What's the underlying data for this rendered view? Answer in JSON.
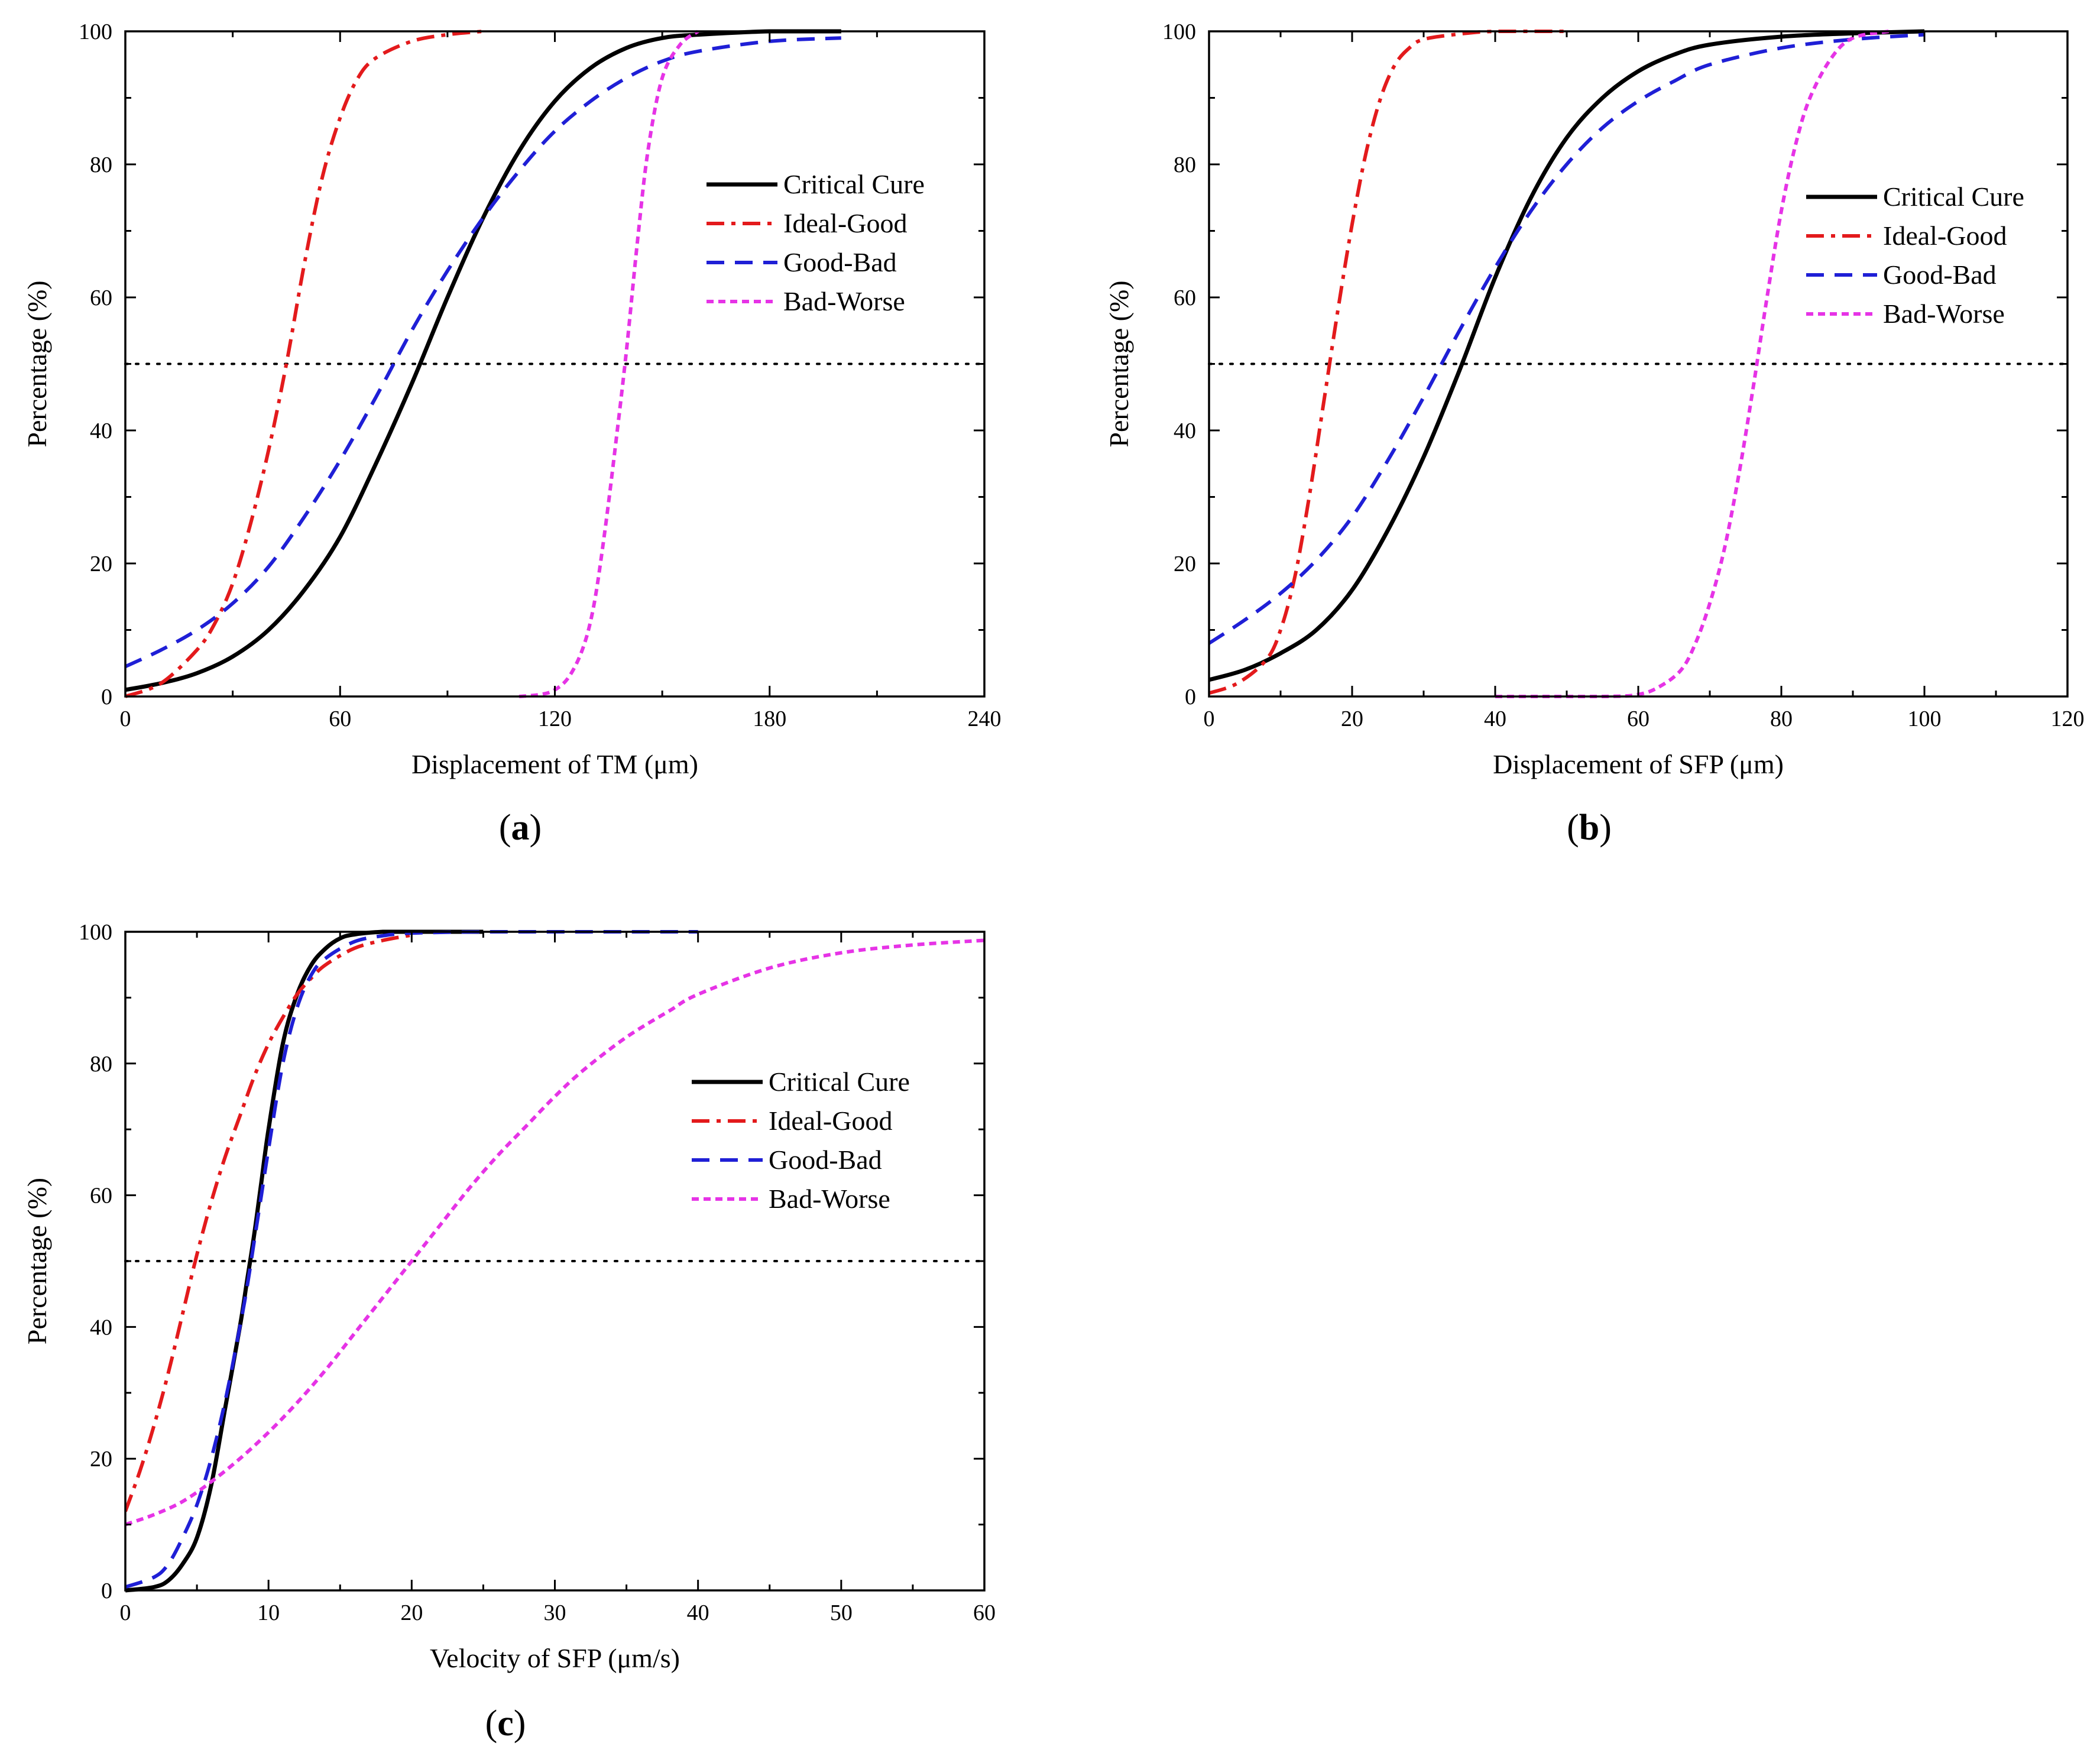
{
  "colors": {
    "critical": "#000000",
    "ideal_good": "#e31a1c",
    "good_bad": "#1f1fd6",
    "bad_worse": "#e633e6",
    "reference": "#000000"
  },
  "chart_data": [
    {
      "type": "line",
      "panel_label": "a",
      "xlabel": "Displacement of TM (μm)",
      "ylabel": "Percentage (%)",
      "xlim": [
        0,
        240
      ],
      "ylim": [
        0,
        100
      ],
      "xticks": [
        0,
        60,
        120,
        180,
        240
      ],
      "yticks": [
        0,
        20,
        40,
        60,
        80,
        100
      ],
      "reference_line": {
        "y": 50,
        "style": "dotted"
      },
      "legend_position": "center-right",
      "series": [
        {
          "name": "Critical Cure",
          "key": "critical",
          "style": "solid",
          "x": [
            0,
            10,
            20,
            30,
            40,
            50,
            60,
            70,
            80,
            90,
            100,
            110,
            120,
            130,
            140,
            150,
            160,
            180,
            200
          ],
          "y": [
            1,
            2,
            3.5,
            6,
            10,
            16,
            24,
            35,
            47,
            60,
            72,
            82,
            89.5,
            94.5,
            97.5,
            99,
            99.5,
            100,
            100
          ]
        },
        {
          "name": "Ideal-Good",
          "key": "ideal_good",
          "style": "dashdot",
          "x": [
            0,
            10,
            20,
            25,
            30,
            35,
            40,
            45,
            50,
            55,
            60,
            65,
            70,
            80,
            90,
            100
          ],
          "y": [
            0,
            2,
            7,
            11,
            17,
            26,
            37,
            50,
            65,
            78,
            87,
            93,
            96,
            98.5,
            99.5,
            100
          ]
        },
        {
          "name": "Good-Bad",
          "key": "good_bad",
          "style": "dashed",
          "x": [
            0,
            10,
            20,
            30,
            40,
            50,
            60,
            70,
            80,
            90,
            100,
            110,
            120,
            130,
            140,
            150,
            160,
            180,
            200
          ],
          "y": [
            4.5,
            7,
            10,
            14,
            19.5,
            27,
            35.5,
            45,
            55,
            64,
            72,
            79,
            85,
            89.5,
            93,
            95.5,
            97,
            98.5,
            99
          ]
        },
        {
          "name": "Bad-Worse",
          "key": "bad_worse",
          "style": "dotted",
          "x": [
            110,
            116,
            120,
            124,
            128,
            131,
            134,
            137,
            140,
            143,
            146,
            150,
            155,
            160
          ],
          "y": [
            0,
            0.3,
            1,
            3,
            7.5,
            14,
            25,
            38,
            52,
            68,
            82,
            93,
            98,
            100
          ]
        }
      ]
    },
    {
      "type": "line",
      "panel_label": "b",
      "xlabel": "Displacement of SFP (μm)",
      "ylabel": "Percentage (%)",
      "xlim": [
        0,
        120
      ],
      "ylim": [
        0,
        100
      ],
      "xticks": [
        0,
        20,
        40,
        60,
        80,
        100,
        120
      ],
      "yticks": [
        0,
        20,
        40,
        60,
        80,
        100
      ],
      "reference_line": {
        "y": 50,
        "style": "dotted"
      },
      "legend_position": "center-right",
      "series": [
        {
          "name": "Critical Cure",
          "key": "critical",
          "style": "solid",
          "x": [
            0,
            5,
            10,
            15,
            20,
            25,
            30,
            35,
            40,
            45,
            50,
            55,
            60,
            65,
            70,
            80,
            90,
            100
          ],
          "y": [
            2.5,
            4,
            6.5,
            10,
            16,
            25,
            36,
            49,
            63,
            75,
            84,
            90,
            94,
            96.5,
            98,
            99.2,
            99.7,
            100
          ]
        },
        {
          "name": "Ideal-Good",
          "key": "ideal_good",
          "style": "dashdot",
          "x": [
            0,
            4,
            8,
            10,
            12,
            14,
            16,
            18,
            20,
            22,
            24,
            26,
            28,
            30,
            35,
            40,
            50
          ],
          "y": [
            0.5,
            2,
            5.5,
            10,
            18,
            30,
            44,
            58,
            71,
            82,
            90,
            95,
            97.5,
            98.8,
            99.6,
            100,
            100
          ]
        },
        {
          "name": "Good-Bad",
          "key": "good_bad",
          "style": "dashed",
          "x": [
            0,
            5,
            10,
            15,
            20,
            25,
            30,
            35,
            40,
            45,
            50,
            55,
            60,
            65,
            70,
            80,
            90,
            100
          ],
          "y": [
            8,
            11.5,
            15.5,
            20.5,
            27,
            35.5,
            45,
            55,
            64.5,
            73,
            80,
            85.5,
            89.5,
            92.5,
            95,
            97.5,
            98.8,
            99.5
          ]
        },
        {
          "name": "Bad-Worse",
          "key": "bad_worse",
          "style": "dotted",
          "x": [
            40,
            55,
            60,
            63,
            66,
            68,
            70,
            72,
            74,
            76,
            78,
            80,
            82,
            84,
            87,
            90,
            95
          ],
          "y": [
            0,
            0,
            0.3,
            1.5,
            4,
            8,
            14,
            22,
            33,
            46,
            60,
            73,
            83,
            90,
            96,
            99,
            100
          ]
        }
      ]
    },
    {
      "type": "line",
      "panel_label": "c",
      "xlabel": "Velocity of SFP (μm/s)",
      "ylabel": "Percentage (%)",
      "xlim": [
        0,
        60
      ],
      "ylim": [
        0,
        100
      ],
      "xticks": [
        0,
        10,
        20,
        30,
        40,
        50,
        60
      ],
      "yticks": [
        0,
        20,
        40,
        60,
        80,
        100
      ],
      "reference_line": {
        "y": 50,
        "style": "dotted"
      },
      "legend_position": "center-right",
      "series": [
        {
          "name": "Critical Cure",
          "key": "critical",
          "style": "solid",
          "x": [
            0,
            2,
            3,
            4,
            5,
            6,
            7,
            8,
            8.5,
            9,
            9.5,
            10,
            11,
            12,
            13,
            14,
            15,
            16,
            18,
            20,
            25
          ],
          "y": [
            0,
            0.5,
            1.5,
            4,
            8,
            16,
            28,
            40,
            47,
            54,
            62,
            70,
            83,
            90.5,
            95,
            97.5,
            99,
            99.6,
            100,
            100,
            100
          ]
        },
        {
          "name": "Ideal-Good",
          "key": "ideal_good",
          "style": "dashdot",
          "x": [
            0,
            1,
            2,
            3,
            4,
            5,
            6,
            7,
            8,
            9,
            10,
            11,
            12,
            13,
            14,
            16,
            18,
            20
          ],
          "y": [
            12,
            18,
            25,
            33,
            42,
            51,
            59,
            66,
            72,
            78,
            83,
            87,
            90.5,
            93,
            95,
            97.5,
            98.7,
            99.5
          ]
        },
        {
          "name": "Good-Bad",
          "key": "good_bad",
          "style": "dashed",
          "x": [
            0,
            2,
            3,
            4,
            5,
            6,
            7,
            8,
            8.5,
            9,
            9.5,
            10,
            11,
            12,
            13,
            14,
            16,
            18,
            20,
            25,
            30,
            35,
            40
          ],
          "y": [
            0.5,
            2,
            4,
            8,
            13,
            20,
            29,
            40,
            46,
            53,
            60,
            67,
            80,
            88.5,
            93.5,
            96,
            98.5,
            99.4,
            99.8,
            100,
            100,
            100,
            100
          ]
        },
        {
          "name": "Bad-Worse",
          "key": "bad_worse",
          "style": "dotted",
          "x": [
            0,
            2,
            4,
            6,
            8,
            10,
            12,
            14,
            16,
            18,
            20,
            22,
            24,
            26,
            28,
            30,
            32,
            35,
            38,
            40,
            45,
            50,
            55,
            60
          ],
          "y": [
            10,
            11.5,
            13.5,
            16.5,
            20,
            24,
            28.5,
            33.5,
            39,
            44.5,
            50,
            55.5,
            61,
            66,
            70.5,
            75,
            79,
            84,
            88,
            90.5,
            94.5,
            96.8,
            98,
            98.7
          ]
        }
      ]
    }
  ]
}
